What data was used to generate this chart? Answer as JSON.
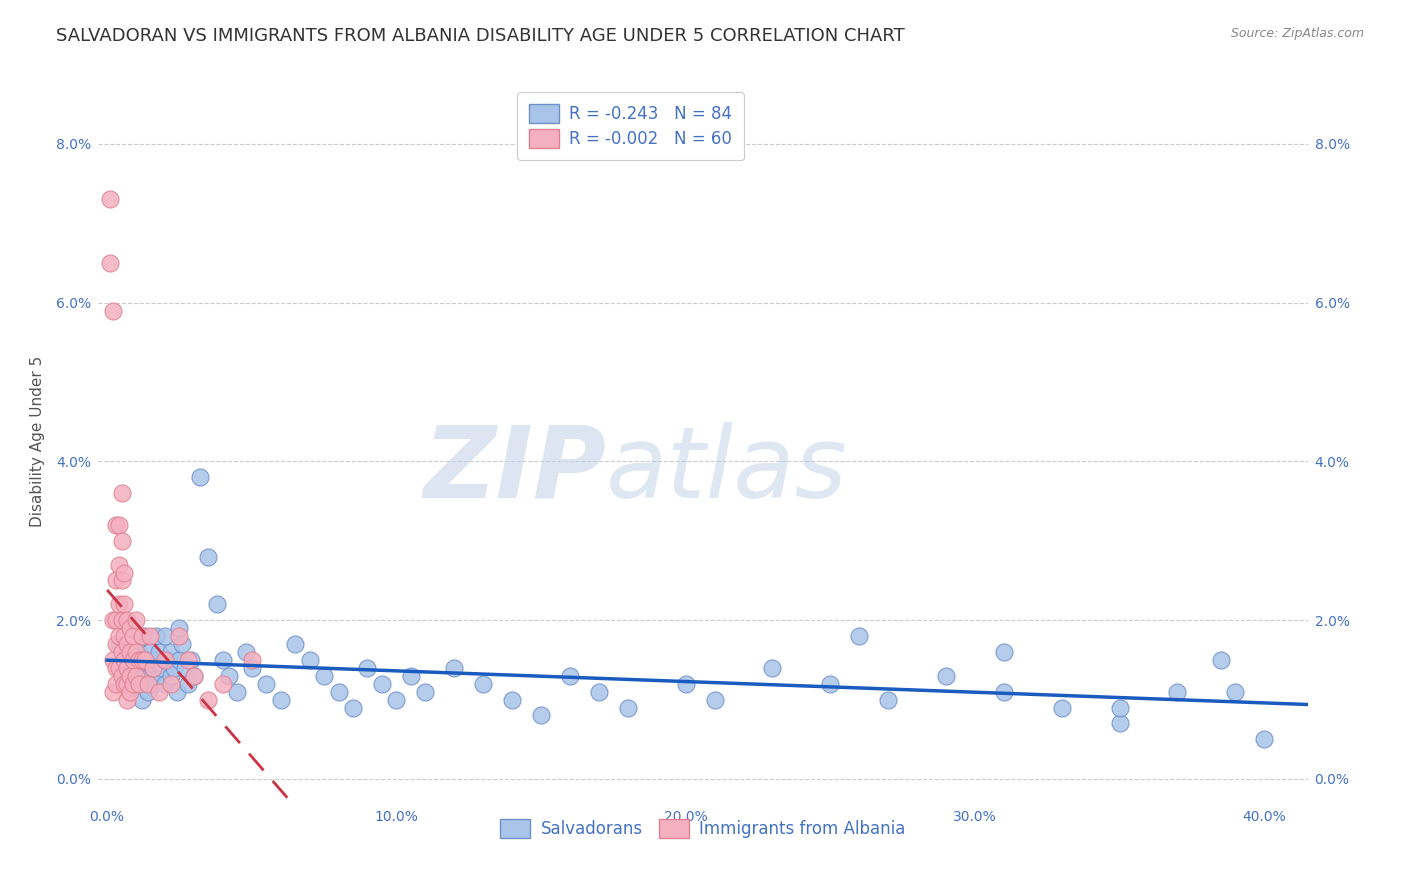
{
  "title": "SALVADORAN VS IMMIGRANTS FROM ALBANIA DISABILITY AGE UNDER 5 CORRELATION CHART",
  "source": "Source: ZipAtlas.com",
  "ylabel": "Disability Age Under 5",
  "xlabel_ticks": [
    "0.0%",
    "10.0%",
    "20.0%",
    "30.0%",
    "40.0%"
  ],
  "xlabel_vals": [
    0.0,
    0.1,
    0.2,
    0.3,
    0.4
  ],
  "ylabel_ticks": [
    "0.0%",
    "2.0%",
    "4.0%",
    "6.0%",
    "8.0%"
  ],
  "ylabel_vals": [
    0.0,
    0.02,
    0.04,
    0.06,
    0.08
  ],
  "xlim": [
    -0.003,
    0.415
  ],
  "ylim": [
    -0.003,
    0.088
  ],
  "legend_blue_r": "R = -0.243",
  "legend_blue_n": "N = 84",
  "legend_pink_r": "R = -0.002",
  "legend_pink_n": "N = 60",
  "legend_blue_label": "Salvadorans",
  "legend_pink_label": "Immigrants from Albania",
  "blue_color": "#a8c4e8",
  "pink_color": "#f5b0c0",
  "blue_edge": "#7090cc",
  "pink_edge": "#e08090",
  "trendline_blue": "#1a5bbf",
  "trendline_pink": "#cc3344",
  "watermark_zip": "ZIP",
  "watermark_atlas": "atlas",
  "grid_color": "#cccccc",
  "background_color": "#ffffff",
  "title_fontsize": 13,
  "axis_label_fontsize": 11,
  "tick_fontsize": 10,
  "blue_x": [
    0.004,
    0.005,
    0.006,
    0.007,
    0.007,
    0.008,
    0.008,
    0.009,
    0.01,
    0.01,
    0.011,
    0.011,
    0.012,
    0.012,
    0.013,
    0.013,
    0.014,
    0.014,
    0.015,
    0.015,
    0.016,
    0.016,
    0.017,
    0.017,
    0.018,
    0.018,
    0.019,
    0.02,
    0.02,
    0.021,
    0.022,
    0.022,
    0.023,
    0.024,
    0.025,
    0.025,
    0.026,
    0.027,
    0.028,
    0.029,
    0.03,
    0.032,
    0.035,
    0.038,
    0.04,
    0.042,
    0.045,
    0.048,
    0.05,
    0.055,
    0.06,
    0.065,
    0.07,
    0.075,
    0.08,
    0.085,
    0.09,
    0.095,
    0.1,
    0.105,
    0.11,
    0.12,
    0.13,
    0.14,
    0.15,
    0.16,
    0.17,
    0.18,
    0.2,
    0.21,
    0.23,
    0.25,
    0.27,
    0.29,
    0.31,
    0.33,
    0.35,
    0.37,
    0.385,
    0.4,
    0.26,
    0.31,
    0.35,
    0.39
  ],
  "blue_y": [
    0.017,
    0.014,
    0.013,
    0.016,
    0.012,
    0.015,
    0.011,
    0.014,
    0.013,
    0.017,
    0.012,
    0.016,
    0.014,
    0.01,
    0.013,
    0.018,
    0.011,
    0.015,
    0.016,
    0.013,
    0.014,
    0.012,
    0.018,
    0.015,
    0.013,
    0.016,
    0.014,
    0.012,
    0.018,
    0.015,
    0.016,
    0.013,
    0.014,
    0.011,
    0.015,
    0.019,
    0.017,
    0.014,
    0.012,
    0.015,
    0.013,
    0.038,
    0.028,
    0.022,
    0.015,
    0.013,
    0.011,
    0.016,
    0.014,
    0.012,
    0.01,
    0.017,
    0.015,
    0.013,
    0.011,
    0.009,
    0.014,
    0.012,
    0.01,
    0.013,
    0.011,
    0.014,
    0.012,
    0.01,
    0.008,
    0.013,
    0.011,
    0.009,
    0.012,
    0.01,
    0.014,
    0.012,
    0.01,
    0.013,
    0.011,
    0.009,
    0.007,
    0.011,
    0.015,
    0.005,
    0.018,
    0.016,
    0.009,
    0.011
  ],
  "pink_x": [
    0.001,
    0.001,
    0.002,
    0.002,
    0.002,
    0.002,
    0.003,
    0.003,
    0.003,
    0.003,
    0.003,
    0.003,
    0.004,
    0.004,
    0.004,
    0.004,
    0.004,
    0.005,
    0.005,
    0.005,
    0.005,
    0.005,
    0.005,
    0.006,
    0.006,
    0.006,
    0.006,
    0.006,
    0.007,
    0.007,
    0.007,
    0.007,
    0.007,
    0.008,
    0.008,
    0.008,
    0.008,
    0.009,
    0.009,
    0.009,
    0.01,
    0.01,
    0.01,
    0.011,
    0.011,
    0.012,
    0.012,
    0.013,
    0.014,
    0.015,
    0.016,
    0.018,
    0.02,
    0.022,
    0.025,
    0.028,
    0.03,
    0.035,
    0.04,
    0.05
  ],
  "pink_y": [
    0.073,
    0.065,
    0.059,
    0.02,
    0.015,
    0.011,
    0.032,
    0.025,
    0.02,
    0.017,
    0.014,
    0.012,
    0.032,
    0.027,
    0.022,
    0.018,
    0.014,
    0.036,
    0.03,
    0.025,
    0.02,
    0.016,
    0.013,
    0.026,
    0.022,
    0.018,
    0.015,
    0.012,
    0.02,
    0.017,
    0.014,
    0.012,
    0.01,
    0.019,
    0.016,
    0.013,
    0.011,
    0.018,
    0.015,
    0.012,
    0.02,
    0.016,
    0.013,
    0.015,
    0.012,
    0.018,
    0.015,
    0.015,
    0.012,
    0.018,
    0.014,
    0.011,
    0.015,
    0.012,
    0.018,
    0.015,
    0.013,
    0.01,
    0.012,
    0.015
  ]
}
